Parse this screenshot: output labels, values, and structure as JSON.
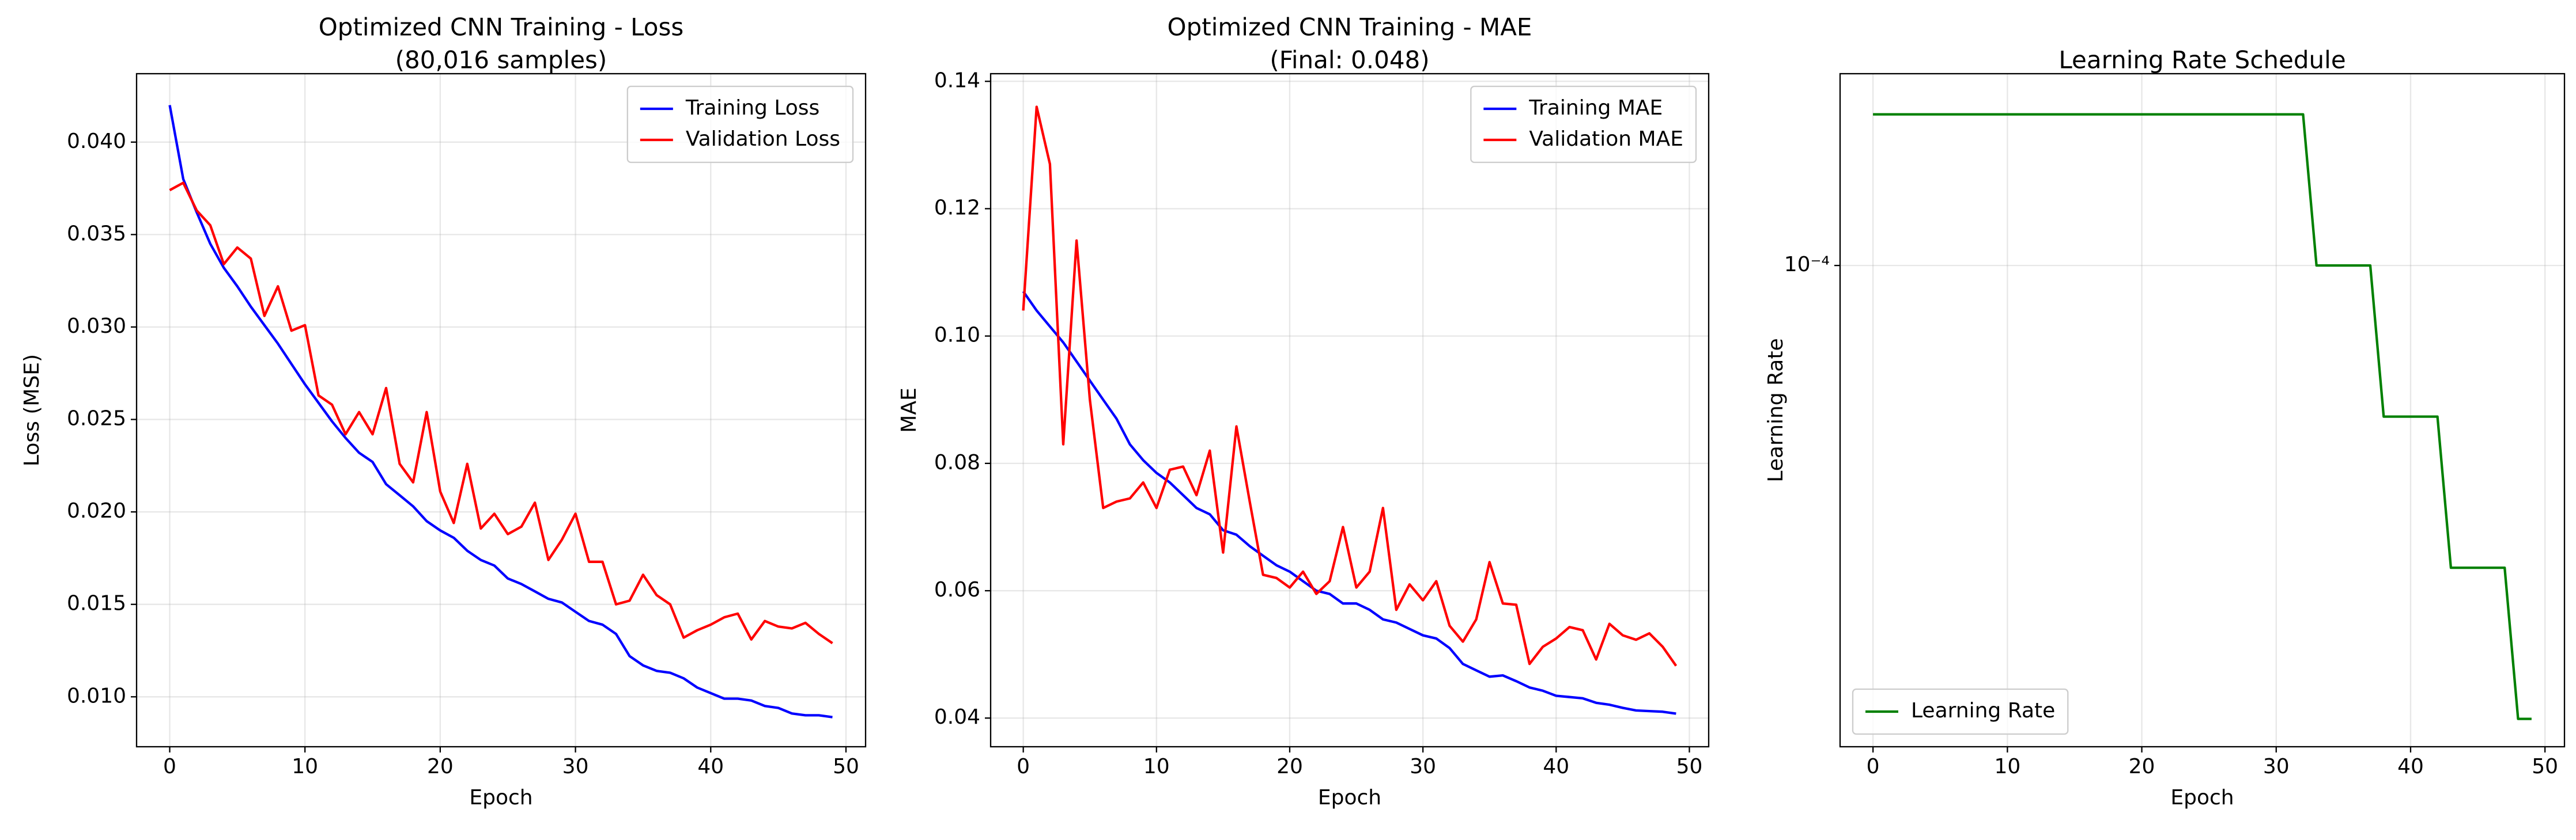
{
  "chart_data": [
    {
      "type": "line",
      "title": "Optimized CNN Training - Loss",
      "subtitle": "(80,016 samples)",
      "xlabel": "Epoch",
      "ylabel": "Loss (MSE)",
      "x": [
        0,
        1,
        2,
        3,
        4,
        5,
        6,
        7,
        8,
        9,
        10,
        11,
        12,
        13,
        14,
        15,
        16,
        17,
        18,
        19,
        20,
        21,
        22,
        23,
        24,
        25,
        26,
        27,
        28,
        29,
        30,
        31,
        32,
        33,
        34,
        35,
        36,
        37,
        38,
        39,
        40,
        41,
        42,
        43,
        44,
        45,
        46,
        47,
        48,
        49
      ],
      "series": [
        {
          "name": "Training Loss",
          "color": "#0000ff",
          "values": [
            0.042,
            0.038,
            0.0362,
            0.0345,
            0.0332,
            0.0322,
            0.0311,
            0.0301,
            0.0291,
            0.028,
            0.0269,
            0.0259,
            0.0249,
            0.024,
            0.0232,
            0.0227,
            0.0215,
            0.0209,
            0.0203,
            0.0195,
            0.019,
            0.0186,
            0.0179,
            0.0174,
            0.0171,
            0.0164,
            0.0161,
            0.0157,
            0.0153,
            0.0151,
            0.0146,
            0.0141,
            0.0139,
            0.0134,
            0.0122,
            0.0117,
            0.0114,
            0.0113,
            0.011,
            0.0105,
            0.0102,
            0.0099,
            0.0099,
            0.0098,
            0.0095,
            0.0094,
            0.0091,
            0.009,
            0.009,
            0.0089
          ]
        },
        {
          "name": "Validation Loss",
          "color": "#ff0000",
          "values": [
            0.0374,
            0.0378,
            0.0363,
            0.0355,
            0.0334,
            0.0343,
            0.0337,
            0.0306,
            0.0322,
            0.0298,
            0.0301,
            0.0263,
            0.0258,
            0.0242,
            0.0254,
            0.0242,
            0.0267,
            0.0226,
            0.0216,
            0.0254,
            0.0211,
            0.0194,
            0.0226,
            0.0191,
            0.0199,
            0.0188,
            0.0192,
            0.0205,
            0.0174,
            0.0185,
            0.0199,
            0.0173,
            0.0173,
            0.015,
            0.0152,
            0.0166,
            0.0155,
            0.015,
            0.0132,
            0.0136,
            0.0139,
            0.0143,
            0.0145,
            0.0131,
            0.0141,
            0.0138,
            0.0137,
            0.014,
            0.0134,
            0.0129
          ]
        }
      ],
      "xlim": [
        -2.45,
        51.45
      ],
      "xticks": [
        0,
        10,
        20,
        30,
        40,
        50
      ],
      "ylim": [
        0.0073,
        0.0437
      ],
      "yticks": [
        {
          "value": 0.01,
          "label": "0.010"
        },
        {
          "value": 0.015,
          "label": "0.015"
        },
        {
          "value": 0.02,
          "label": "0.020"
        },
        {
          "value": 0.025,
          "label": "0.025"
        },
        {
          "value": 0.03,
          "label": "0.030"
        },
        {
          "value": 0.035,
          "label": "0.035"
        },
        {
          "value": 0.04,
          "label": "0.040"
        }
      ],
      "grid": true,
      "legend": "upper right",
      "log_y": false
    },
    {
      "type": "line",
      "title": "Optimized CNN Training - MAE",
      "subtitle": "(Final: 0.048)",
      "xlabel": "Epoch",
      "ylabel": "MAE",
      "x": [
        0,
        1,
        2,
        3,
        4,
        5,
        6,
        7,
        8,
        9,
        10,
        11,
        12,
        13,
        14,
        15,
        16,
        17,
        18,
        19,
        20,
        21,
        22,
        23,
        24,
        25,
        26,
        27,
        28,
        29,
        30,
        31,
        32,
        33,
        34,
        35,
        36,
        37,
        38,
        39,
        40,
        41,
        42,
        43,
        44,
        45,
        46,
        47,
        48,
        49
      ],
      "series": [
        {
          "name": "Training MAE",
          "color": "#0000ff",
          "values": [
            0.107,
            0.104,
            0.1015,
            0.099,
            0.096,
            0.093,
            0.09,
            0.087,
            0.083,
            0.0805,
            0.0785,
            0.077,
            0.075,
            0.073,
            0.072,
            0.0695,
            0.0688,
            0.067,
            0.0655,
            0.064,
            0.063,
            0.0615,
            0.06,
            0.0595,
            0.058,
            0.058,
            0.057,
            0.0555,
            0.055,
            0.054,
            0.053,
            0.0525,
            0.051,
            0.0485,
            0.0475,
            0.0465,
            0.0467,
            0.0458,
            0.0448,
            0.0443,
            0.0435,
            0.0433,
            0.0431,
            0.0424,
            0.0421,
            0.0416,
            0.0412,
            0.0411,
            0.041,
            0.0407
          ]
        },
        {
          "name": "Validation MAE",
          "color": "#ff0000",
          "values": [
            0.104,
            0.136,
            0.127,
            0.083,
            0.115,
            0.09,
            0.073,
            0.074,
            0.0745,
            0.077,
            0.073,
            0.079,
            0.0795,
            0.075,
            0.082,
            0.066,
            0.0858,
            0.074,
            0.0625,
            0.062,
            0.0605,
            0.063,
            0.0595,
            0.0615,
            0.07,
            0.0605,
            0.063,
            0.073,
            0.057,
            0.061,
            0.0585,
            0.0615,
            0.0545,
            0.052,
            0.0555,
            0.0645,
            0.058,
            0.0578,
            0.0485,
            0.0512,
            0.0525,
            0.0543,
            0.0538,
            0.0492,
            0.0548,
            0.053,
            0.0523,
            0.0533,
            0.0512,
            0.0482
          ]
        }
      ],
      "xlim": [
        -2.45,
        51.45
      ],
      "xticks": [
        0,
        10,
        20,
        30,
        40,
        50
      ],
      "ylim": [
        0.0355,
        0.1412
      ],
      "yticks": [
        0.04,
        0.06,
        0.08,
        {
          "value": 0.1,
          "label": "0.10"
        },
        0.12,
        0.14
      ],
      "grid": true,
      "legend": "upper right",
      "log_y": false
    },
    {
      "type": "line",
      "title": "Learning Rate Schedule",
      "xlabel": "Epoch",
      "ylabel": "Learning Rate",
      "x": [
        0,
        1,
        2,
        3,
        4,
        5,
        6,
        7,
        8,
        9,
        10,
        11,
        12,
        13,
        14,
        15,
        16,
        17,
        18,
        19,
        20,
        21,
        22,
        23,
        24,
        25,
        26,
        27,
        28,
        29,
        30,
        31,
        32,
        33,
        34,
        35,
        36,
        37,
        38,
        39,
        40,
        41,
        42,
        43,
        44,
        45,
        46,
        47,
        48,
        49
      ],
      "series": [
        {
          "name": "Learning Rate",
          "color": "#008000",
          "values": [
            0.0002,
            0.0002,
            0.0002,
            0.0002,
            0.0002,
            0.0002,
            0.0002,
            0.0002,
            0.0002,
            0.0002,
            0.0002,
            0.0002,
            0.0002,
            0.0002,
            0.0002,
            0.0002,
            0.0002,
            0.0002,
            0.0002,
            0.0002,
            0.0002,
            0.0002,
            0.0002,
            0.0002,
            0.0002,
            0.0002,
            0.0002,
            0.0002,
            0.0002,
            0.0002,
            0.0002,
            0.0002,
            0.0002,
            0.0001,
            0.0001,
            0.0001,
            0.0001,
            0.0001,
            5e-05,
            5e-05,
            5e-05,
            5e-05,
            5e-05,
            2.5e-05,
            2.5e-05,
            2.5e-05,
            2.5e-05,
            2.5e-05,
            1.25e-05,
            1.25e-05
          ]
        }
      ],
      "xlim": [
        -2.45,
        51.45
      ],
      "xticks": [
        0,
        10,
        20,
        30,
        40,
        50
      ],
      "ylim": [
        1.1e-05,
        0.000241
      ],
      "yticks": [
        {
          "value": 0.0001,
          "label": "10⁻⁴"
        }
      ],
      "grid": true,
      "legend": "lower left",
      "log_y": true
    }
  ]
}
